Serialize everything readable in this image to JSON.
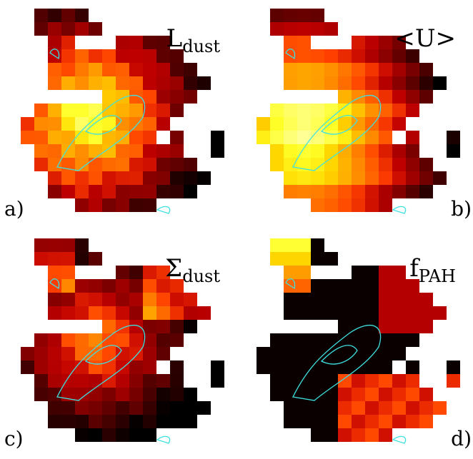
{
  "panels": [
    {
      "title": {
        "main": "L",
        "sub": "dust"
      },
      "label": "a)"
    },
    {
      "title": {
        "main": "<U>",
        "sub": ""
      },
      "label": "b)"
    },
    {
      "title": {
        "main": "Σ",
        "sub": "dust"
      },
      "label": "c)"
    },
    {
      "title": {
        "main": "f",
        "sub": "PAH"
      },
      "label": "d)"
    }
  ]
}
